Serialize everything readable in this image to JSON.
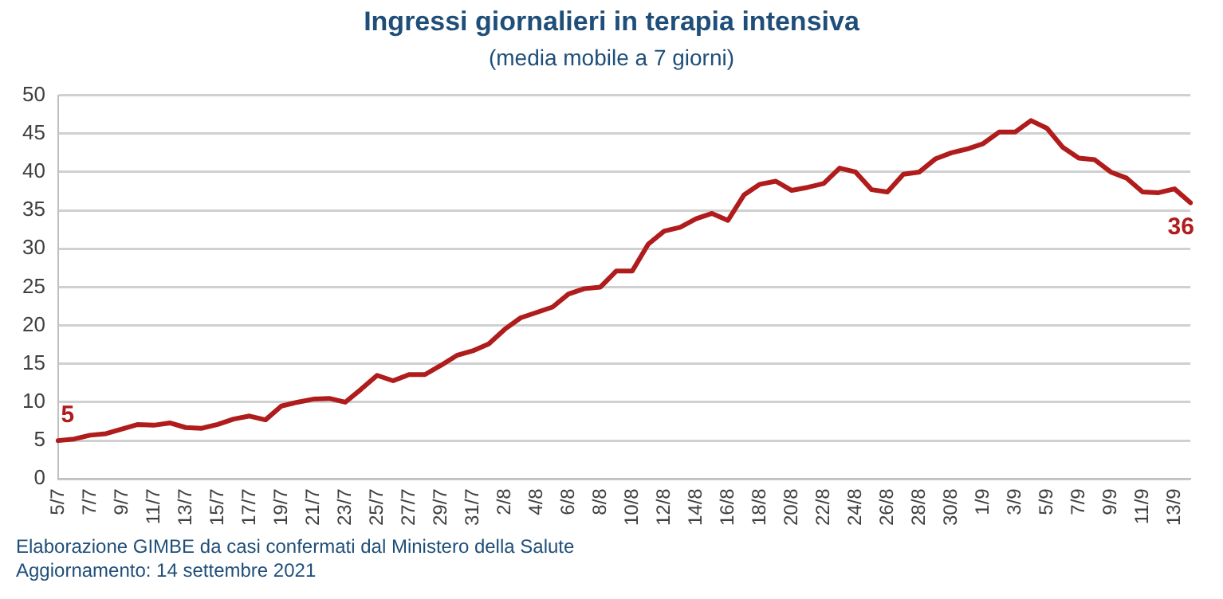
{
  "chart_data": {
    "type": "line",
    "title": "Ingressi giornalieri in terapia intensiva",
    "subtitle": "(media mobile a 7 giorni)",
    "categories": [
      "5/7",
      null,
      "7/7",
      null,
      "9/7",
      null,
      "11/7",
      null,
      "13/7",
      null,
      "15/7",
      null,
      "17/7",
      null,
      "19/7",
      null,
      "21/7",
      null,
      "23/7",
      null,
      "25/7",
      null,
      "27/7",
      null,
      "29/7",
      null,
      "31/7",
      null,
      "2/8",
      null,
      "4/8",
      null,
      "6/8",
      null,
      "8/8",
      null,
      "10/8",
      null,
      "12/8",
      null,
      "14/8",
      null,
      "16/8",
      null,
      "18/8",
      null,
      "20/8",
      null,
      "22/8",
      null,
      "24/8",
      null,
      "26/8",
      null,
      "28/8",
      null,
      "30/8",
      null,
      "1/9",
      null,
      "3/9",
      null,
      "5/9",
      null,
      "7/9",
      null,
      "9/9",
      null,
      "11/9",
      null,
      "13/9",
      null
    ],
    "series": [
      {
        "color": "#b01c1c",
        "values": [
          5,
          5.2,
          5.7,
          5.9,
          6.5,
          7.1,
          7.0,
          7.3,
          6.7,
          6.6,
          7.1,
          7.8,
          8.2,
          7.7,
          9.5,
          10.0,
          10.4,
          10.5,
          10.0,
          11.7,
          13.5,
          12.8,
          13.6,
          13.6,
          14.8,
          16.1,
          16.7,
          17.6,
          19.5,
          21.0,
          21.7,
          22.4,
          24.1,
          24.8,
          25.0,
          27.1,
          27.1,
          30.6,
          32.3,
          32.8,
          33.9,
          34.6,
          33.7,
          37.0,
          38.4,
          38.8,
          37.6,
          38.0,
          38.5,
          40.5,
          40.0,
          37.7,
          37.4,
          39.7,
          40.0,
          41.7,
          42.5,
          43.0,
          43.7,
          45.2,
          45.2,
          46.7,
          45.7,
          43.2,
          41.8,
          41.6,
          40.0,
          39.2,
          37.4,
          37.3,
          37.8,
          36
        ],
        "value_labels": [
          "5",
          null,
          null,
          null,
          null,
          null,
          null,
          null,
          null,
          null,
          null,
          null,
          null,
          null,
          null,
          null,
          null,
          null,
          null,
          null,
          null,
          null,
          null,
          null,
          null,
          null,
          null,
          null,
          null,
          null,
          null,
          null,
          null,
          null,
          null,
          null,
          null,
          null,
          null,
          null,
          null,
          null,
          null,
          null,
          null,
          null,
          null,
          null,
          null,
          null,
          null,
          null,
          null,
          null,
          null,
          null,
          null,
          null,
          null,
          null,
          null,
          null,
          null,
          null,
          null,
          null,
          null,
          null,
          null,
          null,
          null,
          "36"
        ]
      }
    ],
    "ylim": [
      0,
      50
    ],
    "yticks": [
      0,
      5,
      10,
      15,
      20,
      25,
      30,
      35,
      40,
      45,
      50
    ],
    "grid": "y",
    "legend": false,
    "marker": "none",
    "line_style": "solid",
    "annotations": [
      "Elaborazione GIMBE da casi confermati dal Ministero della Salute",
      "Aggiornamento: 14 settembre 2021"
    ]
  }
}
